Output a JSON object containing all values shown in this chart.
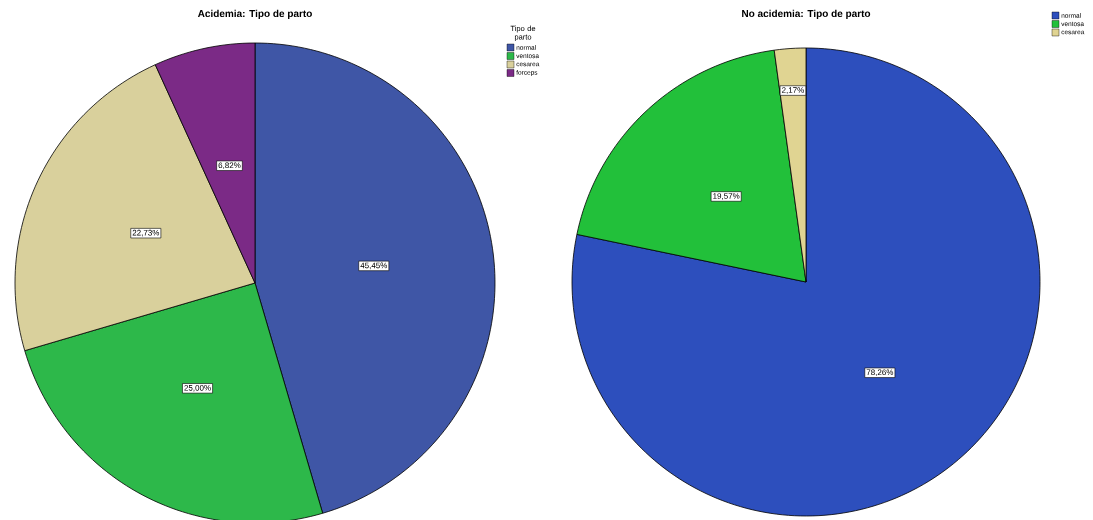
{
  "chart_data": [
    {
      "type": "pie",
      "title": "Acidemia: Tipo de parto",
      "legend_title": "Tipo de parto",
      "legend": "top right",
      "categories": [
        "normal",
        "ventosa",
        "cesarea",
        "forceps"
      ],
      "values": [
        45.45,
        25.0,
        22.73,
        6.82
      ],
      "colors": [
        "#3f56a6",
        "#2db84a",
        "#d9d09c",
        "#7b2a86"
      ],
      "value_labels": [
        "45,45%",
        "25,00%",
        "22,73%",
        "6,82%"
      ]
    },
    {
      "type": "pie",
      "title": "No acidemia: Tipo de parto",
      "legend": "top right",
      "categories": [
        "normal",
        "ventosa",
        "cesarea"
      ],
      "values": [
        78.26,
        19.57,
        2.17
      ],
      "colors": [
        "#2d4fbd",
        "#22c03a",
        "#e0d492"
      ],
      "value_labels": [
        "78,26%",
        "19,57%",
        "2,17%"
      ]
    }
  ]
}
